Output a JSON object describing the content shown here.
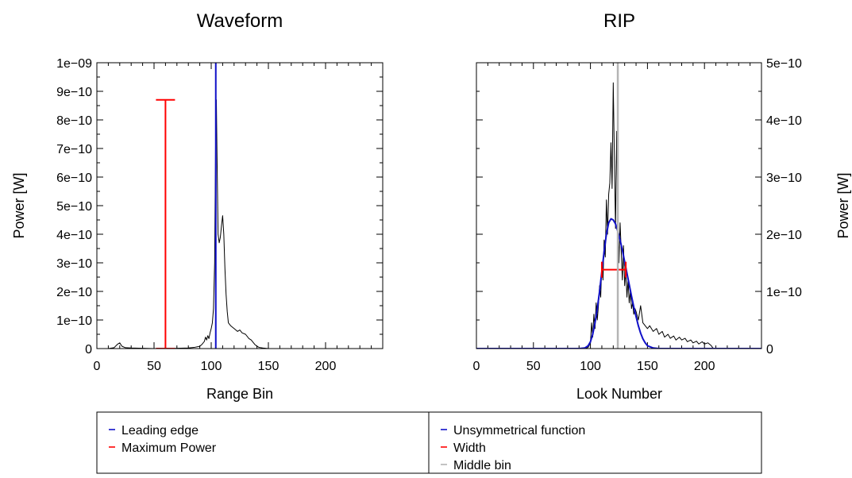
{
  "chart_data": [
    {
      "id": "waveform",
      "type": "line",
      "title": "Waveform",
      "xlabel": "Range Bin",
      "ylabel": "Power [W]",
      "xlim": [
        0,
        250
      ],
      "ylim": [
        0,
        1e-09
      ],
      "xticks": [
        0,
        50,
        100,
        150,
        200
      ],
      "xtick_labels": [
        "0",
        "50",
        "100",
        "150",
        "200"
      ],
      "yticks": [
        0,
        1e-10,
        2e-10,
        3e-10,
        4e-10,
        5e-10,
        6e-10,
        7e-10,
        8e-10,
        9e-10,
        1e-09
      ],
      "ytick_labels": [
        "0",
        "1e−10",
        "2e−10",
        "3e−10",
        "4e−10",
        "5e−10",
        "6e−10",
        "7e−10",
        "8e−10",
        "9e−10",
        "1e−09"
      ],
      "y_axis_side": "left",
      "series": [
        {
          "role": "waveform",
          "color": "#000000",
          "x": [
            0,
            10,
            15,
            18,
            20,
            22,
            25,
            30,
            40,
            50,
            60,
            70,
            80,
            85,
            90,
            92,
            94,
            95,
            96,
            97,
            98,
            99,
            100,
            101,
            102,
            103,
            104,
            104.5,
            105,
            106,
            107,
            108,
            109,
            110,
            111,
            112,
            113,
            114,
            115,
            117,
            120,
            123,
            125,
            127,
            130,
            133,
            135,
            138,
            140,
            142,
            145,
            150,
            160,
            200,
            250
          ],
          "y": [
            0,
            0,
            3e-12,
            1.5e-11,
            2e-11,
            8e-12,
            3e-12,
            2e-12,
            1e-12,
            0,
            0,
            1e-12,
            2e-12,
            4e-12,
            8e-12,
            1.5e-11,
            2.5e-11,
            4e-11,
            3e-11,
            4.5e-11,
            3.5e-11,
            5.5e-11,
            7e-11,
            9e-11,
            1.4e-10,
            3e-10,
            8e-10,
            8.7e-10,
            7e-10,
            4e-10,
            3.7e-10,
            3.9e-10,
            4.3e-10,
            4.65e-10,
            4e-10,
            2.8e-10,
            1.9e-10,
            1.3e-10,
            9e-11,
            8e-11,
            7e-11,
            6e-11,
            6.5e-11,
            5.5e-11,
            5e-11,
            3.5e-11,
            3e-11,
            1.5e-11,
            8e-12,
            4e-12,
            2e-12,
            0,
            0,
            0,
            0
          ]
        },
        {
          "role": "leading-edge",
          "name": "Leading edge",
          "color": "#1010c8",
          "x": 104
        },
        {
          "role": "maximum-power",
          "name": "Maximum Power",
          "color": "#ff0000",
          "x": 60,
          "y_low": 0,
          "y_high": 8.7e-10
        }
      ]
    },
    {
      "id": "rip",
      "type": "line",
      "title": "RIP",
      "xlabel": "Look Number",
      "ylabel": "Power [W]",
      "xlim": [
        0,
        250
      ],
      "ylim": [
        0,
        5e-10
      ],
      "xticks": [
        0,
        50,
        100,
        150,
        200
      ],
      "xtick_labels": [
        "0",
        "50",
        "100",
        "150",
        "200"
      ],
      "yticks": [
        0,
        1e-10,
        2e-10,
        3e-10,
        4e-10,
        5e-10
      ],
      "ytick_labels": [
        "0",
        "1e−10",
        "2e−10",
        "3e−10",
        "4e−10",
        "5e−10"
      ],
      "y_axis_side": "right",
      "series": [
        {
          "role": "rip",
          "color": "#000000",
          "x": [
            0,
            95,
            98,
            100,
            101,
            102,
            103,
            104,
            105,
            106,
            107,
            108,
            109,
            110,
            111,
            112,
            113,
            114,
            115,
            116,
            117,
            118,
            119,
            120,
            121,
            122,
            123,
            124,
            125,
            126,
            127,
            128,
            129,
            130,
            131,
            132,
            133,
            134,
            135,
            136,
            137,
            138,
            139,
            140,
            142,
            144,
            146,
            148,
            150,
            152,
            155,
            158,
            160,
            163,
            165,
            168,
            170,
            173,
            175,
            178,
            180,
            183,
            185,
            188,
            190,
            193,
            195,
            198,
            200,
            203,
            206,
            207,
            208,
            250
          ],
          "y": [
            0,
            0,
            2e-12,
            1e-11,
            4.5e-11,
            2e-11,
            6e-11,
            3.5e-11,
            8e-11,
            5e-11,
            7.5e-11,
            1.1e-10,
            9e-11,
            1.5e-10,
            1.2e-10,
            1.9e-10,
            1.6e-10,
            2.6e-10,
            2e-10,
            2.7e-10,
            2.9e-10,
            3.6e-10,
            2.8e-10,
            4.65e-10,
            3.3e-10,
            2.1e-10,
            3.8e-10,
            2.4e-10,
            1.5e-10,
            2.2e-10,
            1.7e-10,
            1.2e-10,
            1.8e-10,
            1.1e-10,
            1.4e-10,
            9e-11,
            1.2e-10,
            8e-11,
            1e-10,
            7e-11,
            8e-11,
            6e-11,
            7e-11,
            6.5e-11,
            5e-11,
            7.5e-11,
            4.5e-11,
            4e-11,
            3.5e-11,
            4e-11,
            3e-11,
            3.5e-11,
            2.5e-11,
            3e-11,
            2e-11,
            2.5e-11,
            1.8e-11,
            2.2e-11,
            1.5e-11,
            2e-11,
            1.5e-11,
            1.8e-11,
            1.2e-11,
            1.5e-11,
            1e-11,
            1.3e-11,
            8e-12,
            1.2e-11,
            8e-12,
            1e-11,
            5e-12,
            2e-12,
            0,
            0
          ]
        },
        {
          "role": "unsymmetrical-function",
          "name": "Unsymmetrical function",
          "color": "#1010c8",
          "x": [
            0,
            90,
            95,
            98,
            100,
            102,
            104,
            106,
            108,
            110,
            112,
            114,
            116,
            118,
            120,
            122,
            124,
            126,
            128,
            130,
            132,
            134,
            136,
            138,
            140,
            142,
            144,
            146,
            148,
            150,
            155,
            160,
            250
          ],
          "y": [
            0,
            0,
            1e-12,
            5e-12,
            1.2e-11,
            2.5e-11,
            4.5e-11,
            7e-11,
            1e-10,
            1.35e-10,
            1.7e-10,
            2e-10,
            2.2e-10,
            2.27e-10,
            2.25e-10,
            2.18e-10,
            2.05e-10,
            1.9e-10,
            1.72e-10,
            1.52e-10,
            1.32e-10,
            1.12e-10,
            9.2e-11,
            7.3e-11,
            5.6e-11,
            4e-11,
            2.7e-11,
            1.7e-11,
            1e-11,
            5e-12,
            1e-12,
            0,
            0
          ]
        },
        {
          "role": "width",
          "name": "Width",
          "color": "#ff0000",
          "x_low": 110,
          "x_high": 131,
          "y": 1.38e-10
        },
        {
          "role": "middle-bin",
          "name": "Middle bin",
          "color": "#b4b4b4",
          "x": 124
        }
      ]
    }
  ],
  "legend": {
    "left": [
      {
        "label": "Leading edge",
        "color": "#1010c8"
      },
      {
        "label": "Maximum Power",
        "color": "#ff0000"
      }
    ],
    "right": [
      {
        "label": "Unsymmetrical function",
        "color": "#1010c8"
      },
      {
        "label": "Width",
        "color": "#ff0000"
      },
      {
        "label": "Middle bin",
        "color": "#b4b4b4"
      }
    ]
  }
}
